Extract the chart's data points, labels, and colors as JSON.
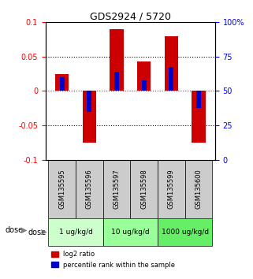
{
  "title": "GDS2924 / 5720",
  "samples": [
    "GSM135595",
    "GSM135596",
    "GSM135597",
    "GSM135598",
    "GSM135599",
    "GSM135600"
  ],
  "log2_values": [
    0.025,
    -0.075,
    0.09,
    0.043,
    0.08,
    -0.075
  ],
  "percentile_values": [
    0.02,
    -0.03,
    0.028,
    0.015,
    0.035,
    -0.025
  ],
  "bar_color": "#cc0000",
  "dot_color": "#0000cc",
  "ylim": [
    -0.1,
    0.1
  ],
  "right_ylim": [
    0,
    100
  ],
  "yticks_left": [
    -0.1,
    -0.05,
    0.0,
    0.05,
    0.1
  ],
  "yticks_right": [
    0,
    25,
    50,
    75,
    100
  ],
  "ytick_labels_left": [
    "-0.1",
    "-0.05",
    "0",
    "0.05",
    "0.1"
  ],
  "ytick_labels_right": [
    "0",
    "25",
    "50",
    "75",
    "100%"
  ],
  "hlines": [
    0.05,
    0.0,
    -0.05
  ],
  "hline_styles": [
    "dotted",
    "dashed_red",
    "dotted"
  ],
  "dose_groups": [
    {
      "label": "1 ug/kg/d",
      "samples": [
        "GSM135595",
        "GSM135596"
      ],
      "color": "#ccffcc"
    },
    {
      "label": "10 ug/kg/d",
      "samples": [
        "GSM135597",
        "GSM135598"
      ],
      "color": "#99ff99"
    },
    {
      "label": "1000 ug/kg/d",
      "samples": [
        "GSM135599",
        "GSM135600"
      ],
      "color": "#66ee66"
    }
  ],
  "sample_box_color": "#cccccc",
  "dose_label": "dose",
  "legend_red_label": "log2 ratio",
  "legend_blue_label": "percentile rank within the sample",
  "bar_width": 0.5
}
